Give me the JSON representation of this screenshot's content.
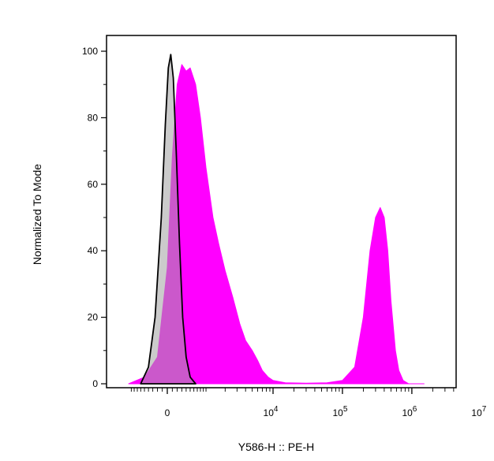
{
  "chart_data": {
    "type": "area",
    "title": "",
    "xlabel": "Y586-H :: PE-H",
    "ylabel": "Normalized To Mode",
    "x_scale": "biexponential",
    "x_tick_labels": [
      {
        "base": "0",
        "exp": ""
      },
      {
        "base": "10",
        "exp": "4"
      },
      {
        "base": "10",
        "exp": "5"
      },
      {
        "base": "10",
        "exp": "6"
      },
      {
        "base": "10",
        "exp": "7"
      }
    ],
    "ylim": [
      0,
      100
    ],
    "y_ticks": [
      0,
      20,
      40,
      60,
      80,
      100
    ],
    "grid": false,
    "legend": "none",
    "series": [
      {
        "color": "#ff00ff",
        "fill_opacity": 1.0,
        "stroke": "#ff00ff",
        "points": [
          [
            -1000,
            0
          ],
          [
            -500,
            2
          ],
          [
            -200,
            8
          ],
          [
            0,
            35
          ],
          [
            100,
            68
          ],
          [
            200,
            90
          ],
          [
            300,
            96
          ],
          [
            400,
            94
          ],
          [
            500,
            95
          ],
          [
            650,
            90
          ],
          [
            800,
            80
          ],
          [
            1000,
            65
          ],
          [
            1300,
            50
          ],
          [
            1600,
            42
          ],
          [
            2000,
            34
          ],
          [
            2600,
            26
          ],
          [
            3300,
            18
          ],
          [
            4000,
            13
          ],
          [
            5000,
            10
          ],
          [
            6000,
            7
          ],
          [
            7000,
            4
          ],
          [
            8500,
            2
          ],
          [
            10000,
            1
          ],
          [
            15000,
            0.3
          ],
          [
            30000,
            0.2
          ],
          [
            60000,
            0.3
          ],
          [
            100000,
            1
          ],
          [
            150000,
            5
          ],
          [
            200000,
            20
          ],
          [
            250000,
            40
          ],
          [
            300000,
            50
          ],
          [
            350000,
            53
          ],
          [
            400000,
            50
          ],
          [
            450000,
            40
          ],
          [
            500000,
            25
          ],
          [
            580000,
            10
          ],
          [
            650000,
            4
          ],
          [
            750000,
            1
          ],
          [
            900000,
            0
          ],
          [
            1500000,
            0
          ]
        ]
      },
      {
        "color": "#a0a0a0",
        "fill_opacity": 0.55,
        "stroke": "#000000",
        "points": [
          [
            -600,
            0
          ],
          [
            -400,
            5
          ],
          [
            -250,
            20
          ],
          [
            -120,
            50
          ],
          [
            -40,
            78
          ],
          [
            20,
            95
          ],
          [
            70,
            99
          ],
          [
            120,
            92
          ],
          [
            180,
            70
          ],
          [
            250,
            42
          ],
          [
            320,
            20
          ],
          [
            400,
            8
          ],
          [
            500,
            2
          ],
          [
            650,
            0
          ]
        ]
      }
    ]
  }
}
